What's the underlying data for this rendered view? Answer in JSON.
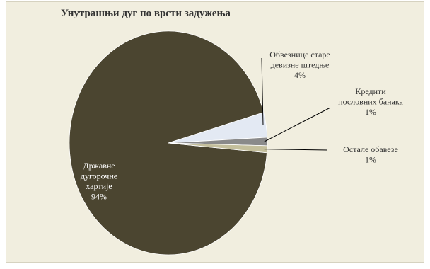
{
  "chart_data": {
    "type": "pie",
    "title": "Унутрашњи дуг по врсти задужења",
    "slices": [
      {
        "label_lines": [
          "Државне",
          "дугорочне",
          "хартије"
        ],
        "value_label": "94%",
        "value": 94.2,
        "color": "#4b4530",
        "label_color": "#ffffff"
      },
      {
        "label_lines": [
          "Обвезнице старе",
          "девизне штедње"
        ],
        "value_label": "4%",
        "value": 3.6,
        "color": "#e3e9f3",
        "label_color": "#333333"
      },
      {
        "label_lines": [
          "Кредити",
          "пословних банака"
        ],
        "value_label": "1%",
        "value": 1.2,
        "color": "#8a8a8a",
        "label_color": "#333333"
      },
      {
        "label_lines": [
          "Остале обавезе"
        ],
        "value_label": "1%",
        "value": 1.0,
        "color": "#c4bf9c",
        "label_color": "#333333"
      }
    ]
  }
}
